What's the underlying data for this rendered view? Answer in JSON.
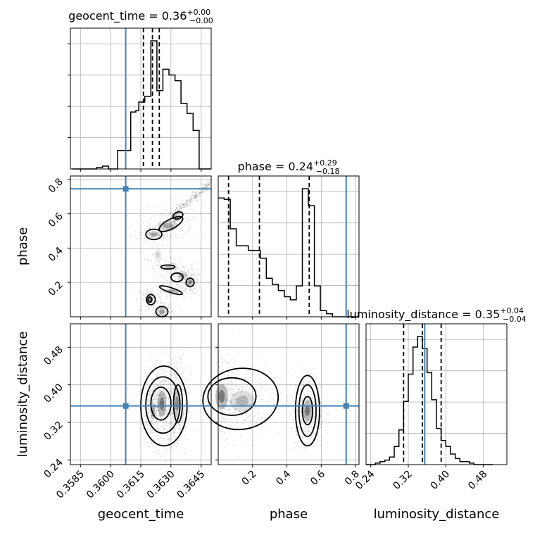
{
  "chart_data": {
    "type": "corner",
    "parameters": [
      "geocent_time",
      "phase",
      "luminosity_distance"
    ],
    "truths": {
      "geocent_time": 0.36075,
      "phase": 0.745,
      "luminosity_distance": 0.355
    },
    "colors": {
      "truth": "#4682b4",
      "hist": "#000000",
      "grid": "#b0b0b0",
      "density": "#000000"
    },
    "titles": {
      "geocent_time": {
        "prefix": "geocent_time = 0.36",
        "plus": "+0.00",
        "minus": "−0.00"
      },
      "phase": {
        "prefix": "phase = 0.24",
        "plus": "+0.29",
        "minus": "−0.18"
      },
      "luminosity_distance": {
        "prefix": "luminosity_distance = 0.35",
        "plus": "+0.04",
        "minus": "−0.04"
      }
    },
    "axes": {
      "geocent_time": {
        "range": [
          0.358,
          0.365
        ],
        "ticks": [
          0.3585,
          0.36,
          0.3615,
          0.363,
          0.3645
        ],
        "tick_labels": [
          "0.3585",
          "0.3600",
          "0.3615",
          "0.3630",
          "0.3645"
        ]
      },
      "phase": {
        "range": [
          0.0,
          0.82
        ],
        "ticks": [
          0.2,
          0.4,
          0.6,
          0.8
        ],
        "tick_labels": [
          "0.2",
          "0.4",
          "0.6",
          "0.8"
        ]
      },
      "luminosity_distance": {
        "range": [
          0.23,
          0.53
        ],
        "ticks": [
          0.24,
          0.32,
          0.4,
          0.48
        ],
        "tick_labels": [
          "0.24",
          "0.32",
          "0.40",
          "0.48"
        ]
      }
    },
    "histograms": {
      "geocent_time": {
        "edges": [
          0.3581,
          0.3587,
          0.3593,
          0.3596,
          0.3599,
          0.36035,
          0.36065,
          0.361,
          0.36125,
          0.3614,
          0.3617,
          0.362,
          0.3623,
          0.3626,
          0.3629,
          0.3632,
          0.3635,
          0.3638,
          0.3641,
          0.3644,
          0.3647,
          0.365
        ],
        "counts": [
          0.0,
          0.0,
          0.01,
          0.02,
          0.0,
          0.13,
          0.13,
          0.4,
          0.41,
          0.47,
          0.51,
          0.9,
          0.55,
          0.7,
          0.66,
          0.62,
          0.46,
          0.39,
          0.27,
          0.0,
          0.0
        ]
      },
      "phase": {
        "edges": [
          0.0,
          0.035,
          0.07,
          0.105,
          0.14,
          0.175,
          0.21,
          0.245,
          0.28,
          0.315,
          0.35,
          0.385,
          0.42,
          0.455,
          0.49,
          0.525,
          0.56,
          0.595,
          0.63,
          0.665,
          0.7,
          0.735,
          0.77,
          0.82
        ],
        "counts": [
          0.77,
          0.76,
          0.57,
          0.46,
          0.46,
          0.43,
          0.43,
          0.38,
          0.25,
          0.21,
          0.17,
          0.13,
          0.11,
          0.2,
          0.83,
          0.72,
          0.2,
          0.04,
          0.02,
          0.0,
          0.0,
          0.0,
          0.0
        ]
      },
      "luminosity_distance": {
        "edges": [
          0.23,
          0.24,
          0.25,
          0.26,
          0.27,
          0.28,
          0.29,
          0.3,
          0.31,
          0.32,
          0.33,
          0.34,
          0.35,
          0.36,
          0.37,
          0.38,
          0.39,
          0.4,
          0.41,
          0.42,
          0.43,
          0.44,
          0.45,
          0.46,
          0.47,
          0.48,
          0.49,
          0.5
        ],
        "counts": [
          0.0,
          0.0,
          0.01,
          0.02,
          0.03,
          0.05,
          0.12,
          0.23,
          0.42,
          0.6,
          0.78,
          0.85,
          0.77,
          0.61,
          0.43,
          0.24,
          0.16,
          0.12,
          0.07,
          0.04,
          0.02,
          0.02,
          0.01,
          0.0,
          0.0,
          0.0,
          0.0
        ]
      }
    },
    "quantiles": {
      "geocent_time": [
        0.36163,
        0.36208,
        0.36242
      ],
      "phase": [
        0.06,
        0.24,
        0.53
      ],
      "luminosity_distance": [
        0.31,
        0.35,
        0.39
      ]
    },
    "density_blobs": {
      "phase_vs_geocent_time": [
        {
          "x": 0.36215,
          "y": 0.48,
          "sx": 0.00035,
          "sy": 0.02,
          "w": 0.7
        },
        {
          "x": 0.36285,
          "y": 0.53,
          "sx": 0.00055,
          "sy": 0.035,
          "w": 0.6
        },
        {
          "x": 0.36325,
          "y": 0.58,
          "sx": 0.00025,
          "sy": 0.03,
          "w": 0.6
        },
        {
          "x": 0.36235,
          "y": 0.36,
          "sx": 0.0002,
          "sy": 0.04,
          "w": 0.3
        },
        {
          "x": 0.36285,
          "y": 0.29,
          "sx": 0.0003,
          "sy": 0.015,
          "w": 0.5
        },
        {
          "x": 0.36355,
          "y": 0.24,
          "sx": 0.0003,
          "sy": 0.03,
          "w": 0.6
        },
        {
          "x": 0.36395,
          "y": 0.2,
          "sx": 0.00018,
          "sy": 0.02,
          "w": 0.9
        },
        {
          "x": 0.36305,
          "y": 0.15,
          "sx": 0.0005,
          "sy": 0.015,
          "w": 0.6
        },
        {
          "x": 0.36195,
          "y": 0.1,
          "sx": 0.0002,
          "sy": 0.025,
          "w": 0.8
        },
        {
          "x": 0.36255,
          "y": 0.03,
          "sx": 0.00025,
          "sy": 0.03,
          "w": 0.7
        }
      ],
      "luminosity_distance_vs_geocent_time": [
        {
          "x": 0.36255,
          "y": 0.36,
          "sx": 0.00025,
          "sy": 0.03,
          "w": 1.0
        },
        {
          "x": 0.3621,
          "y": 0.345,
          "sx": 0.00015,
          "sy": 0.02,
          "w": 0.6
        },
        {
          "x": 0.3633,
          "y": 0.36,
          "sx": 0.0002,
          "sy": 0.035,
          "w": 0.8
        }
      ],
      "luminosity_distance_vs_phase": [
        {
          "x": 0.02,
          "y": 0.375,
          "sx": 0.04,
          "sy": 0.03,
          "w": 1.0
        },
        {
          "x": 0.14,
          "y": 0.365,
          "sx": 0.08,
          "sy": 0.025,
          "w": 0.5
        },
        {
          "x": 0.52,
          "y": 0.345,
          "sx": 0.03,
          "sy": 0.025,
          "w": 1.0
        }
      ]
    },
    "contours": {
      "phase_vs_geocent_time": [
        {
          "x": 0.36215,
          "y": 0.48,
          "rx": 0.0004,
          "ry": 0.03,
          "rot": 0
        },
        {
          "x": 0.363,
          "y": 0.54,
          "rx": 0.00065,
          "ry": 0.028,
          "rot": -28
        },
        {
          "x": 0.36335,
          "y": 0.59,
          "rx": 0.00025,
          "ry": 0.02,
          "rot": -20
        },
        {
          "x": 0.36285,
          "y": 0.29,
          "rx": 0.00035,
          "ry": 0.012,
          "rot": 0
        },
        {
          "x": 0.3633,
          "y": 0.23,
          "rx": 0.0003,
          "ry": 0.025,
          "rot": 0
        },
        {
          "x": 0.36395,
          "y": 0.2,
          "rx": 0.0002,
          "ry": 0.025,
          "rot": 0
        },
        {
          "x": 0.363,
          "y": 0.155,
          "rx": 0.0006,
          "ry": 0.014,
          "rot": 18
        },
        {
          "x": 0.362,
          "y": 0.1,
          "rx": 0.00022,
          "ry": 0.03,
          "rot": 0
        },
        {
          "x": 0.36255,
          "y": 0.03,
          "rx": 0.0003,
          "ry": 0.03,
          "rot": 0
        },
        {
          "x": 0.36195,
          "y": 0.1,
          "rx": 0.0001,
          "ry": 0.015,
          "rot": 0
        }
      ],
      "luminosity_distance_vs_geocent_time": [
        {
          "x": 0.36265,
          "y": 0.355,
          "rx": 0.00115,
          "ry": 0.085,
          "rot": 0
        },
        {
          "x": 0.3626,
          "y": 0.357,
          "rx": 0.00085,
          "ry": 0.06,
          "rot": 0
        },
        {
          "x": 0.3625,
          "y": 0.36,
          "rx": 0.0005,
          "ry": 0.035,
          "rot": 0
        },
        {
          "x": 0.36335,
          "y": 0.36,
          "rx": 0.00022,
          "ry": 0.04,
          "rot": 0
        }
      ],
      "luminosity_distance_vs_phase": [
        {
          "x": 0.13,
          "y": 0.37,
          "rx": 0.22,
          "ry": 0.065,
          "rot": -8
        },
        {
          "x": 0.08,
          "y": 0.375,
          "rx": 0.14,
          "ry": 0.04,
          "rot": 0
        },
        {
          "x": 0.52,
          "y": 0.345,
          "rx": 0.07,
          "ry": 0.075,
          "rot": 0
        },
        {
          "x": 0.52,
          "y": 0.345,
          "rx": 0.05,
          "ry": 0.055,
          "rot": 0
        },
        {
          "x": 0.52,
          "y": 0.345,
          "rx": 0.03,
          "ry": 0.03,
          "rot": 0
        }
      ]
    }
  }
}
